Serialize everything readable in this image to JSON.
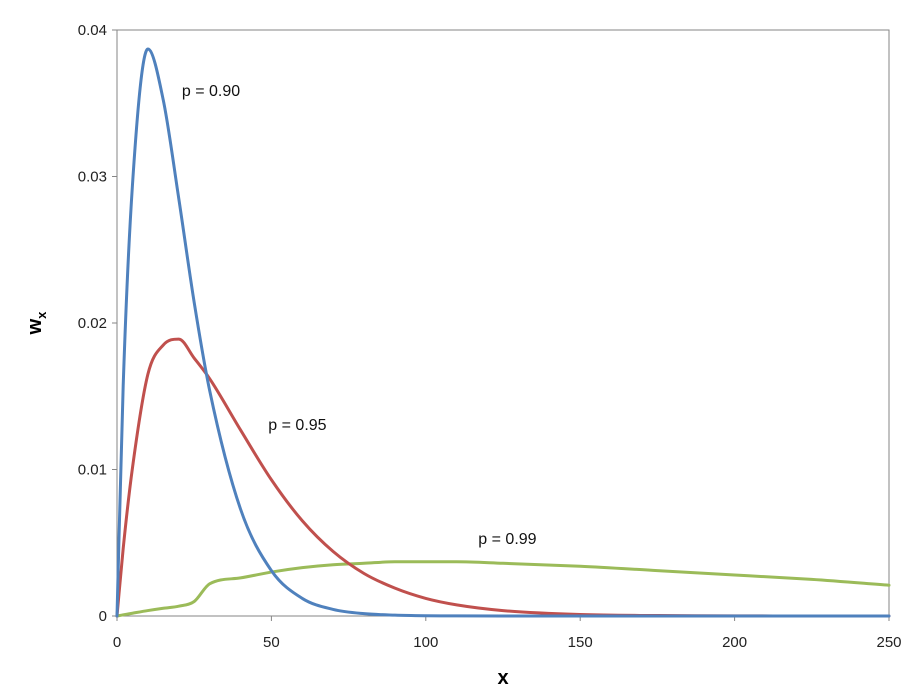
{
  "chart_data": {
    "type": "line",
    "title": "",
    "xlabel": "x",
    "ylabel_main": "w",
    "ylabel_sub": "x",
    "xlim": [
      0,
      250
    ],
    "ylim": [
      0,
      0.04
    ],
    "xticks": [
      0,
      50,
      100,
      150,
      200,
      250
    ],
    "xtick_labels": [
      "0",
      "50",
      "100",
      "150",
      "200",
      "250"
    ],
    "yticks": [
      0,
      0.01,
      0.02,
      0.03,
      0.04
    ],
    "ytick_labels": [
      "0",
      "0.01",
      "0.02",
      "0.03",
      "0.04"
    ],
    "grid": false,
    "legend": "none",
    "x": [
      0,
      2,
      5,
      10,
      15,
      20,
      25,
      30,
      40,
      50,
      60,
      70,
      80,
      90,
      100,
      110,
      125,
      150,
      175,
      200,
      225,
      250
    ],
    "series": [
      {
        "color": "#4F81BD",
        "values": [
          0,
          0.0157,
          0.0294,
          0.0387,
          0.0352,
          0.0285,
          0.0214,
          0.0154,
          0.0073,
          0.0031,
          0.0012,
          0.00045,
          0.00016,
          6e-05,
          2e-05,
          7e-06,
          1e-06,
          0,
          0,
          0,
          0,
          0
        ]
      },
      {
        "color": "#C0504D",
        "values": [
          0,
          0.0046,
          0.0101,
          0.0165,
          0.0185,
          0.0189,
          0.0176,
          0.0162,
          0.0127,
          0.0093,
          0.0065,
          0.0044,
          0.0029,
          0.0019,
          0.0012,
          0.00076,
          0.00037,
          0.0001,
          3e-05,
          8e-06,
          2e-06,
          0
        ]
      },
      {
        "color": "#9BBB59",
        "values": [
          0,
          8e-05,
          0.00019,
          0.00037,
          0.00053,
          0.00067,
          0.00099,
          0.0022,
          0.0026,
          0.003,
          0.0033,
          0.0035,
          0.0036,
          0.0037,
          0.0037,
          0.0037,
          0.0036,
          0.0034,
          0.0031,
          0.0028,
          0.0025,
          0.0021
        ]
      }
    ],
    "annotations": [
      {
        "text": "p = 0.90",
        "x": 21,
        "y": 0.0355
      },
      {
        "text": "p = 0.95",
        "x": 49,
        "y": 0.0127
      },
      {
        "text": "p = 0.99",
        "x": 117,
        "y": 0.0049
      }
    ]
  }
}
